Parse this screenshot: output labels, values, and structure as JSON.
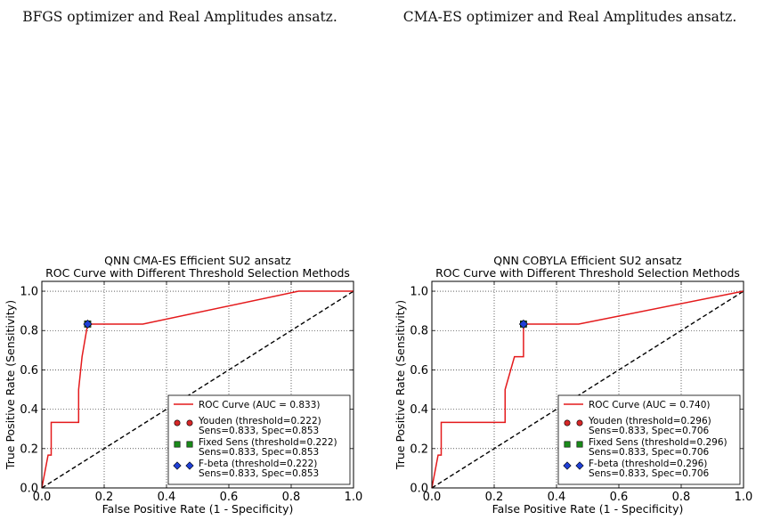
{
  "captions": [
    {
      "line1": "",
      "line2": "BFGS optimizer and Real Amplitudes ansatz."
    },
    {
      "line1": "",
      "line2": "CMA-ES optimizer and Real Amplitudes ansatz."
    }
  ],
  "chart_data": [
    {
      "type": "line",
      "title": "QNN CMA-ES Efficient SU2 ansatz",
      "subtitle": "ROC Curve with Different Threshold Selection Methods",
      "xlabel": "False Positive Rate (1 - Specificity)",
      "ylabel": "True Positive Rate (Sensitivity)",
      "xlim": [
        0,
        1
      ],
      "ylim": [
        0,
        1.05
      ],
      "xticks": [
        "0.0",
        "0.2",
        "0.4",
        "0.6",
        "0.8",
        "1.0"
      ],
      "yticks": [
        "0.0",
        "0.2",
        "0.4",
        "0.6",
        "0.8",
        "1.0"
      ],
      "grid": true,
      "legend_position": "lower-right",
      "colors": {
        "roc": "#e41a1c",
        "youden": "#d62728",
        "fixed": "#1a8a1a",
        "fbeta": "#1f3fd6",
        "diagonal": "#000000"
      },
      "series": [
        {
          "name": "ROC Curve (AUC = 0.833)",
          "x": [
            0,
            0.02,
            0.03,
            0.03,
            0.118,
            0.118,
            0.129,
            0.147,
            0.147,
            0.324,
            0.824,
            0.824,
            1.0
          ],
          "y": [
            0,
            0.167,
            0.167,
            0.333,
            0.333,
            0.5,
            0.667,
            0.833,
            0.833,
            0.833,
            1.0,
            1.0,
            1.0
          ]
        }
      ],
      "diagonal": {
        "x": [
          0,
          1
        ],
        "y": [
          0,
          1
        ]
      },
      "markers": [
        {
          "label": "Youden (threshold=0.222)",
          "detail": "Sens=0.833, Spec=0.853",
          "x": 0.147,
          "y": 0.833,
          "shape": "circle"
        },
        {
          "label": "Fixed Sens (threshold=0.222)",
          "detail": "Sens=0.833, Spec=0.853",
          "x": 0.147,
          "y": 0.833,
          "shape": "square"
        },
        {
          "label": "F-beta (threshold=0.222)",
          "detail": "Sens=0.833, Spec=0.853",
          "x": 0.147,
          "y": 0.833,
          "shape": "diamond"
        }
      ]
    },
    {
      "type": "line",
      "title": "QNN COBYLA Efficient SU2 ansatz",
      "subtitle": "ROC Curve with Different Threshold Selection Methods",
      "xlabel": "False Positive Rate (1 - Specificity)",
      "ylabel": "True Positive Rate (Sensitivity)",
      "xlim": [
        0,
        1
      ],
      "ylim": [
        0,
        1.05
      ],
      "xticks": [
        "0.0",
        "0.2",
        "0.4",
        "0.6",
        "0.8",
        "1.0"
      ],
      "yticks": [
        "0.0",
        "0.2",
        "0.4",
        "0.6",
        "0.8",
        "1.0"
      ],
      "grid": true,
      "legend_position": "lower-right",
      "colors": {
        "roc": "#e41a1c",
        "youden": "#d62728",
        "fixed": "#1a8a1a",
        "fbeta": "#1f3fd6",
        "diagonal": "#000000"
      },
      "series": [
        {
          "name": "ROC Curve (AUC = 0.740)",
          "x": [
            0,
            0.02,
            0.03,
            0.03,
            0.235,
            0.235,
            0.265,
            0.265,
            0.294,
            0.294,
            0.471,
            1.0
          ],
          "y": [
            0,
            0.167,
            0.167,
            0.333,
            0.333,
            0.5,
            0.667,
            0.667,
            0.667,
            0.833,
            0.833,
            1.0
          ]
        }
      ],
      "diagonal": {
        "x": [
          0,
          1
        ],
        "y": [
          0,
          1
        ]
      },
      "markers": [
        {
          "label": "Youden (threshold=0.296)",
          "detail": "Sens=0.833, Spec=0.706",
          "x": 0.294,
          "y": 0.833,
          "shape": "circle"
        },
        {
          "label": "Fixed Sens (threshold=0.296)",
          "detail": "Sens=0.833, Spec=0.706",
          "x": 0.294,
          "y": 0.833,
          "shape": "square"
        },
        {
          "label": "F-beta (threshold=0.296)",
          "detail": "Sens=0.833, Spec=0.706",
          "x": 0.294,
          "y": 0.833,
          "shape": "diamond"
        }
      ]
    }
  ]
}
